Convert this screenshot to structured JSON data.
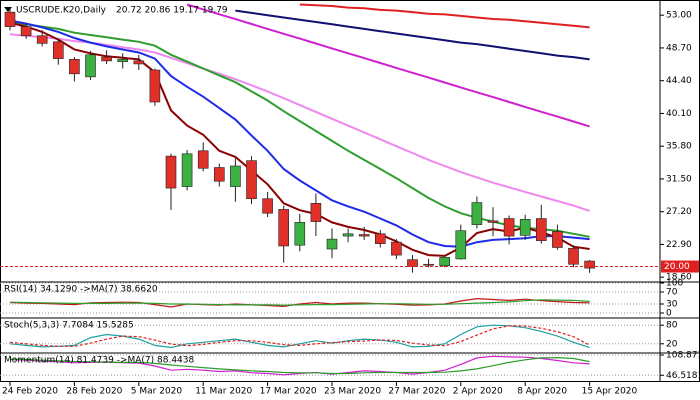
{
  "chart_data": [
    {
      "type": "candlestick",
      "title": "USCRUDE.K20,Daily",
      "subtitle": "20.72 20.86 19.17 19.79",
      "categories": [
        "24 Feb 2020",
        null,
        null,
        null,
        "28 Feb 2020",
        null,
        null,
        null,
        "5 Mar 2020",
        null,
        null,
        null,
        "11 Mar 2020",
        null,
        null,
        null,
        "17 Mar 2020",
        null,
        null,
        null,
        "23 Mar 2020",
        null,
        null,
        null,
        "27 Mar 2020",
        null,
        null,
        null,
        "2 Apr 2020",
        null,
        null,
        null,
        "8 Apr 2020",
        null,
        null,
        null,
        "15 Apr 2020"
      ],
      "open": [
        53.4,
        51.5,
        50.3,
        49.5,
        47.2,
        44.9,
        47.5,
        46.9,
        47.0,
        45.8,
        34.5,
        30.5,
        35.2,
        33.0,
        30.5,
        33.9,
        28.9,
        27.5,
        22.8,
        28.3,
        22.3,
        24.0,
        24.2,
        24.3,
        23.2,
        20.9,
        20.3,
        20.1,
        21.0,
        25.5,
        26.0,
        26.3,
        24.1,
        26.3,
        24.6,
        22.4,
        20.72
      ],
      "high": [
        54.0,
        52.0,
        51.0,
        49.9,
        47.5,
        48.3,
        48.4,
        48.0,
        47.8,
        46.0,
        34.8,
        35.3,
        36.3,
        33.5,
        34.2,
        34.5,
        29.8,
        28.0,
        26.9,
        29.6,
        25.0,
        25.0,
        25.2,
        24.8,
        23.6,
        21.5,
        21.0,
        21.5,
        25.5,
        29.2,
        27.8,
        26.7,
        26.8,
        28.1,
        25.5,
        22.8,
        20.86
      ],
      "low": [
        51.0,
        49.9,
        48.9,
        46.5,
        44.3,
        44.5,
        46.6,
        46.0,
        45.8,
        41.1,
        27.4,
        30.0,
        32.5,
        30.5,
        28.5,
        28.2,
        26.5,
        20.5,
        22.0,
        24.0,
        21.1,
        23.2,
        23.5,
        22.5,
        21.0,
        19.2,
        19.9,
        19.9,
        20.9,
        25.0,
        24.0,
        22.9,
        23.5,
        23.0,
        22.2,
        19.9,
        19.17
      ],
      "close": [
        51.5,
        50.3,
        49.3,
        47.3,
        45.3,
        47.8,
        47.0,
        47.2,
        46.6,
        41.6,
        30.3,
        34.8,
        32.9,
        31.2,
        33.2,
        28.9,
        27.0,
        22.7,
        25.8,
        25.9,
        23.6,
        24.3,
        24.0,
        23.0,
        21.5,
        20.0,
        20.2,
        21.2,
        24.7,
        28.4,
        25.8,
        24.0,
        26.2,
        23.4,
        22.5,
        20.3,
        19.79
      ],
      "up_color": "#3cb043",
      "down_color": "#e0302a",
      "series": [
        {
          "color": "#e02020",
          "values": [
            null,
            null,
            null,
            null,
            null,
            null,
            null,
            null,
            null,
            null,
            null,
            null,
            null,
            null,
            null,
            null,
            null,
            null,
            54.4,
            54.3,
            54.2,
            54.0,
            53.9,
            53.7,
            53.6,
            53.4,
            53.2,
            53.1,
            52.9,
            52.7,
            52.5,
            52.4,
            52.2,
            52.0,
            51.8,
            51.6,
            51.4
          ]
        },
        {
          "color": "#101070",
          "values": [
            null,
            null,
            null,
            null,
            null,
            null,
            null,
            null,
            null,
            null,
            null,
            null,
            null,
            null,
            53.6,
            53.3,
            53.0,
            52.7,
            52.4,
            52.1,
            51.8,
            51.5,
            51.2,
            50.9,
            50.6,
            50.3,
            50.0,
            49.7,
            49.4,
            49.2,
            48.9,
            48.6,
            48.3,
            48.0,
            47.7,
            47.5,
            47.2
          ]
        },
        {
          "color": "#d020d0",
          "values": [
            null,
            null,
            null,
            null,
            null,
            null,
            null,
            null,
            null,
            null,
            null,
            54.4,
            53.76,
            53.12,
            52.48,
            51.84,
            51.2,
            50.56,
            49.92,
            49.28,
            48.64,
            48.0,
            47.36,
            46.72,
            46.08,
            45.44,
            44.8,
            44.16,
            43.52,
            42.88,
            42.24,
            41.6,
            40.96,
            40.32,
            39.68,
            39.04,
            38.4
          ]
        },
        {
          "color": "#ee88ee",
          "values": [
            50.5,
            50.3,
            50.1,
            49.9,
            49.6,
            49.4,
            49.1,
            48.8,
            48.5,
            48.1,
            47.4,
            46.7,
            46.0,
            45.3,
            44.6,
            43.8,
            43.0,
            42.1,
            41.2,
            40.3,
            39.4,
            38.5,
            37.6,
            36.7,
            35.8,
            34.9,
            34.0,
            33.2,
            32.4,
            31.7,
            31.0,
            30.4,
            29.8,
            29.2,
            28.6,
            28.0,
            27.3
          ]
        },
        {
          "color": "#2e9e2e",
          "values": [
            52,
            51.8,
            51.5,
            51.2,
            50.7,
            50.4,
            50.1,
            49.8,
            49.5,
            49.0,
            47.8,
            46.9,
            46.0,
            45.1,
            44.2,
            43.0,
            41.8,
            40.4,
            39.1,
            37.8,
            36.5,
            35.2,
            34.0,
            32.8,
            31.6,
            30.3,
            29.0,
            27.9,
            27.0,
            26.4,
            25.9,
            25.4,
            25.1,
            24.9,
            24.7,
            24.3,
            23.9
          ]
        },
        {
          "color": "#1e2ce8",
          "values": [
            52.3,
            51.9,
            51.4,
            50.8,
            50,
            49.4,
            48.9,
            48.5,
            48.1,
            47.3,
            45.0,
            43.6,
            42.3,
            40.8,
            39.3,
            37.2,
            35.2,
            32.8,
            31.3,
            30.0,
            28.7,
            27.9,
            27.2,
            26.3,
            25.4,
            24.2,
            23.2,
            22.7,
            22.6,
            23.2,
            23.5,
            23.6,
            23.7,
            24.0,
            24.0,
            23.8,
            23.6
          ]
        },
        {
          "color": "#8b0000",
          "values": [
            52,
            51.5,
            50.8,
            49.8,
            48.5,
            48.0,
            47.6,
            47.4,
            47.2,
            45.5,
            40.5,
            38.5,
            37.3,
            35.2,
            34.4,
            32.6,
            30.8,
            28.3,
            27.4,
            26.9,
            25.8,
            25.2,
            24.8,
            24.2,
            23.3,
            22.2,
            21.5,
            21.4,
            22.5,
            24.4,
            24.9,
            24.6,
            25.1,
            24.5,
            23.8,
            22.6,
            22.3
          ]
        }
      ],
      "ylim": [
        18.1,
        54.6
      ],
      "yticks": [
        {
          "value": 53,
          "label": "53.00"
        },
        {
          "value": 48.7,
          "label": "48.70"
        },
        {
          "value": 44.4,
          "label": "44.40"
        },
        {
          "value": 40.1,
          "label": "40.10"
        },
        {
          "value": 35.8,
          "label": "35.80"
        },
        {
          "value": 31.5,
          "label": "31.50"
        },
        {
          "value": 27.2,
          "label": "27.20"
        },
        {
          "value": 22.9,
          "label": "22.90"
        },
        {
          "value": 18.6,
          "label": "18.60"
        }
      ],
      "price_line": {
        "value": 20,
        "label": "20.00",
        "color": "#e02020"
      }
    },
    {
      "type": "line",
      "title": "RSI(14) 34.1290  ->MA(7) 38.6620",
      "series": [
        {
          "color": "#c01818",
          "values": [
            35,
            33,
            32,
            30,
            28,
            34,
            35,
            36,
            35,
            28,
            20,
            30,
            28,
            26,
            30,
            27,
            25,
            22,
            30,
            35,
            30,
            33,
            33,
            31,
            29,
            26,
            27,
            30,
            40,
            48,
            45,
            42,
            46,
            41,
            38,
            35,
            34.129
          ]
        },
        {
          "color": "#2e9e2e",
          "values": [
            36,
            35,
            34,
            33,
            32,
            32,
            32,
            33,
            33,
            32,
            30,
            30,
            29,
            28,
            27,
            27,
            27,
            26,
            27,
            28,
            28,
            29,
            30,
            31,
            31,
            30,
            29,
            29,
            31,
            33,
            35,
            37,
            41,
            44,
            43,
            42,
            38.662
          ]
        }
      ],
      "ylim": [
        0,
        100
      ],
      "yticks": [
        100,
        70,
        30,
        0
      ]
    },
    {
      "type": "line",
      "title": "Stoch(5,3,3) 7.7084 15.5285",
      "series": [
        {
          "color": "#20a0a0",
          "values": [
            20,
            15,
            10,
            12,
            15,
            40,
            50,
            45,
            35,
            15,
            8,
            20,
            25,
            30,
            35,
            25,
            15,
            10,
            20,
            30,
            22,
            30,
            35,
            32,
            25,
            10,
            12,
            20,
            50,
            75,
            80,
            78,
            72,
            60,
            45,
            25,
            7.7084
          ]
        },
        {
          "color": "#e02020",
          "dashed": true,
          "values": [
            25,
            20,
            15,
            12,
            12,
            22,
            35,
            45,
            43,
            32,
            19,
            14,
            18,
            25,
            30,
            30,
            25,
            17,
            15,
            20,
            24,
            27,
            29,
            32,
            31,
            22,
            16,
            14,
            27,
            48,
            68,
            78,
            77,
            70,
            59,
            43,
            15.5285
          ]
        }
      ],
      "ylim": [
        0,
        100
      ],
      "yticks": [
        80,
        20
      ]
    },
    {
      "type": "line",
      "title": "Momentum(14) 81.4739  ->MA(7) 88.4438",
      "series": [
        {
          "color": "#d020d0",
          "values": [
            95,
            93,
            90,
            88,
            85,
            86,
            87,
            85,
            84,
            75,
            62,
            65,
            62,
            58,
            60,
            54,
            52,
            48,
            52,
            55,
            50,
            55,
            60,
            58,
            55,
            50,
            55,
            62,
            80,
            100,
            105,
            103,
            102,
            98,
            92,
            85,
            81.4739
          ]
        },
        {
          "color": "#2e9e2e",
          "values": [
            96,
            95,
            93,
            91,
            89,
            88,
            87,
            86,
            86,
            83,
            78,
            74,
            70,
            66,
            63,
            60,
            58,
            55,
            54,
            54,
            52,
            52,
            54,
            55,
            55,
            55,
            55,
            56,
            60,
            66,
            76,
            86,
            94,
            100,
            101,
            98,
            88.4438
          ]
        }
      ],
      "ylim": [
        35,
        112
      ],
      "yticks": [
        108.871,
        46.5181
      ]
    }
  ]
}
